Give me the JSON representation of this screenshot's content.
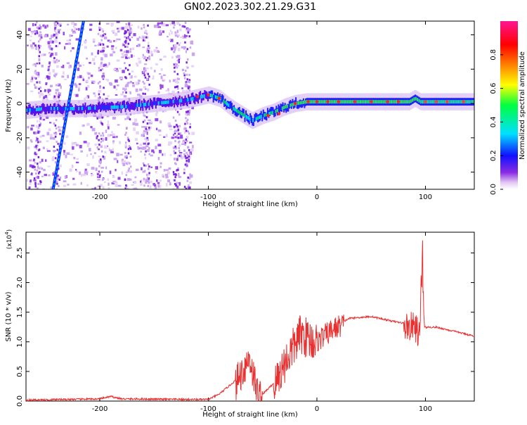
{
  "title": "GN02.2023.302.21.29.G31",
  "chart_data": [
    {
      "type": "heatmap",
      "xlabel": "Height of straight line (km)",
      "ylabel": "Frequency (Hz)",
      "xlim": [
        -268,
        145
      ],
      "ylim": [
        -50,
        48
      ],
      "xticks": [
        -200,
        -100,
        0,
        100
      ],
      "yticks": [
        -40,
        -20,
        0,
        20,
        40
      ],
      "colorbar": {
        "label": "Normalized spectral amplitude",
        "range": [
          0,
          1
        ],
        "ticks": [
          "0.0",
          "0.2",
          "0.4",
          "0.6",
          "0.8"
        ],
        "colors": [
          "#ffffff",
          "#e3c8f4",
          "#8a2be2",
          "#1010ff",
          "#00e0ff",
          "#00ff40",
          "#ffff00",
          "#ff8000",
          "#ff0000",
          "#ff1493"
        ]
      },
      "ridge": [
        {
          "x": -268,
          "y": -4
        },
        {
          "x": -250,
          "y": -3
        },
        {
          "x": -220,
          "y": -3
        },
        {
          "x": -180,
          "y": -2
        },
        {
          "x": -150,
          "y": 0
        },
        {
          "x": -120,
          "y": 2
        },
        {
          "x": -100,
          "y": 5
        },
        {
          "x": -90,
          "y": 3
        },
        {
          "x": -80,
          "y": -2
        },
        {
          "x": -70,
          "y": -6
        },
        {
          "x": -60,
          "y": -10
        },
        {
          "x": -50,
          "y": -7
        },
        {
          "x": -40,
          "y": -5
        },
        {
          "x": -30,
          "y": -2
        },
        {
          "x": -20,
          "y": 0
        },
        {
          "x": -10,
          "y": 1
        },
        {
          "x": 0,
          "y": 1
        },
        {
          "x": 20,
          "y": 1
        },
        {
          "x": 60,
          "y": 1
        },
        {
          "x": 85,
          "y": 1
        },
        {
          "x": 90,
          "y": 3
        },
        {
          "x": 95,
          "y": 1
        },
        {
          "x": 145,
          "y": 1
        }
      ],
      "streak": {
        "x": [
          -243,
          -215
        ],
        "y": [
          -50,
          48
        ]
      }
    },
    {
      "type": "line",
      "xlabel": "Height of straight line (km)",
      "ylabel": "SNR (10 * v/v)",
      "scale_label": "(x10",
      "scale_exponent": "4",
      "scale_close": ")",
      "xlim": [
        -268,
        145
      ],
      "ylim": [
        0,
        2.85
      ],
      "xticks": [
        -200,
        -100,
        0,
        100
      ],
      "yticks": [
        "0.0",
        "0.5",
        "1.0",
        "1.5",
        "2.0",
        "2.5"
      ],
      "line_color": "#e83030",
      "envelope": [
        {
          "x": -268,
          "y": 0.02
        },
        {
          "x": -200,
          "y": 0.04
        },
        {
          "x": -190,
          "y": 0.08
        },
        {
          "x": -180,
          "y": 0.04
        },
        {
          "x": -120,
          "y": 0.03
        },
        {
          "x": -100,
          "y": 0.03
        },
        {
          "x": -90,
          "y": 0.12
        },
        {
          "x": -75,
          "y": 0.35
        },
        {
          "x": -62,
          "y": 0.8
        },
        {
          "x": -55,
          "y": 0.2
        },
        {
          "x": -50,
          "y": 0.12
        },
        {
          "x": -40,
          "y": 0.3
        },
        {
          "x": -30,
          "y": 0.7
        },
        {
          "x": -15,
          "y": 1.2
        },
        {
          "x": 0,
          "y": 1.05
        },
        {
          "x": 15,
          "y": 1.25
        },
        {
          "x": 30,
          "y": 1.4
        },
        {
          "x": 50,
          "y": 1.43
        },
        {
          "x": 70,
          "y": 1.35
        },
        {
          "x": 85,
          "y": 1.3
        },
        {
          "x": 90,
          "y": 1.32
        },
        {
          "x": 95,
          "y": 1.15
        },
        {
          "x": 97,
          "y": 2.8
        },
        {
          "x": 99,
          "y": 1.25
        },
        {
          "x": 110,
          "y": 1.25
        },
        {
          "x": 145,
          "y": 1.1
        }
      ],
      "noise_regions": [
        {
          "x": [
            -75,
            -50
          ],
          "amp": 0.3
        },
        {
          "x": [
            -40,
            0
          ],
          "amp": 0.35
        },
        {
          "x": [
            0,
            25
          ],
          "amp": 0.2
        },
        {
          "x": [
            80,
            97
          ],
          "amp": 0.25
        }
      ]
    }
  ]
}
